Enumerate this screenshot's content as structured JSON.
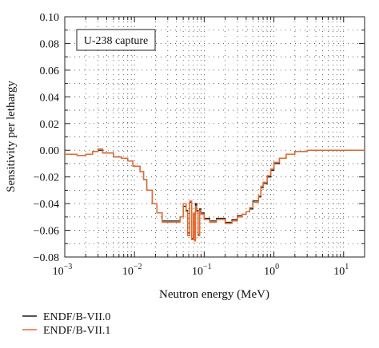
{
  "chart_data": {
    "type": "line",
    "annotation": "U-238 capture",
    "xlabel": "Neutron energy (MeV)",
    "ylabel": "Sensitivity per lethargy",
    "x_scale": "log",
    "xlim": [
      0.001,
      20
    ],
    "ylim": [
      -0.08,
      0.1
    ],
    "grid": true,
    "legend_position": "bottom-left, outside plot",
    "x_ticks": [
      {
        "value": 0.001,
        "base": "10",
        "exp": "−3"
      },
      {
        "value": 0.01,
        "base": "10",
        "exp": "−2"
      },
      {
        "value": 0.1,
        "base": "10",
        "exp": "−1"
      },
      {
        "value": 1,
        "base": "10",
        "exp": "0"
      },
      {
        "value": 10,
        "base": "10",
        "exp": "1"
      }
    ],
    "y_ticks": [
      {
        "value": 0.1,
        "label": "0.10"
      },
      {
        "value": 0.08,
        "label": "0.08"
      },
      {
        "value": 0.06,
        "label": "0.06"
      },
      {
        "value": 0.04,
        "label": "0.04"
      },
      {
        "value": 0.02,
        "label": "0.02"
      },
      {
        "value": 0.0,
        "label": "0.00"
      },
      {
        "value": -0.02,
        "label": "−0.02"
      },
      {
        "value": -0.04,
        "label": "−0.04"
      },
      {
        "value": -0.06,
        "label": "−0.06"
      },
      {
        "value": -0.08,
        "label": "−0.08"
      }
    ],
    "series": [
      {
        "name": "ENDF/B-VII.0",
        "color": "#1a1a1a",
        "step": true,
        "x": [
          0.001,
          0.0015,
          0.002,
          0.0025,
          0.003,
          0.0035,
          0.005,
          0.0065,
          0.008,
          0.0095,
          0.012,
          0.0135,
          0.015,
          0.018,
          0.021,
          0.025,
          0.035,
          0.045,
          0.05,
          0.055,
          0.058,
          0.062,
          0.066,
          0.07,
          0.073,
          0.075,
          0.078,
          0.082,
          0.086,
          0.09,
          0.1,
          0.12,
          0.15,
          0.2,
          0.25,
          0.3,
          0.35,
          0.4,
          0.45,
          0.5,
          0.6,
          0.65,
          0.7,
          0.8,
          0.9,
          1.0,
          1.2,
          1.5,
          2.0,
          3.0,
          5.0,
          20
        ],
        "y": [
          -0.003,
          -0.004,
          -0.003,
          -0.001,
          0.0,
          -0.002,
          -0.005,
          -0.006,
          -0.008,
          -0.012,
          -0.016,
          -0.022,
          -0.03,
          -0.04,
          -0.047,
          -0.053,
          -0.053,
          -0.05,
          -0.042,
          -0.045,
          -0.062,
          -0.039,
          -0.066,
          -0.048,
          -0.067,
          -0.04,
          -0.045,
          -0.063,
          -0.044,
          -0.047,
          -0.051,
          -0.053,
          -0.051,
          -0.054,
          -0.052,
          -0.049,
          -0.048,
          -0.046,
          -0.044,
          -0.038,
          -0.035,
          -0.028,
          -0.025,
          -0.02,
          -0.015,
          -0.01,
          -0.006,
          -0.003,
          -0.001,
          0.0,
          0.0,
          0.0
        ]
      },
      {
        "name": "ENDF/B-VII.1",
        "color": "#e8692a",
        "step": true,
        "x": [
          0.001,
          0.0015,
          0.002,
          0.0025,
          0.003,
          0.0035,
          0.005,
          0.0065,
          0.008,
          0.0095,
          0.012,
          0.0135,
          0.015,
          0.018,
          0.021,
          0.025,
          0.035,
          0.045,
          0.05,
          0.055,
          0.058,
          0.062,
          0.066,
          0.07,
          0.073,
          0.075,
          0.078,
          0.082,
          0.086,
          0.09,
          0.1,
          0.12,
          0.15,
          0.2,
          0.25,
          0.3,
          0.35,
          0.4,
          0.45,
          0.5,
          0.6,
          0.65,
          0.7,
          0.8,
          0.9,
          1.0,
          1.2,
          1.5,
          2.0,
          3.0,
          5.0,
          20
        ],
        "y": [
          -0.003,
          -0.004,
          -0.003,
          -0.001,
          0.001,
          -0.002,
          -0.005,
          -0.006,
          -0.008,
          -0.012,
          -0.016,
          -0.022,
          -0.03,
          -0.04,
          -0.047,
          -0.054,
          -0.054,
          -0.05,
          -0.04,
          -0.046,
          -0.064,
          -0.038,
          -0.067,
          -0.047,
          -0.068,
          -0.042,
          -0.046,
          -0.064,
          -0.045,
          -0.048,
          -0.052,
          -0.054,
          -0.052,
          -0.055,
          -0.053,
          -0.05,
          -0.048,
          -0.046,
          -0.043,
          -0.039,
          -0.034,
          -0.027,
          -0.024,
          -0.019,
          -0.014,
          -0.009,
          -0.006,
          -0.003,
          -0.001,
          0.0,
          0.0,
          0.0
        ]
      }
    ]
  }
}
